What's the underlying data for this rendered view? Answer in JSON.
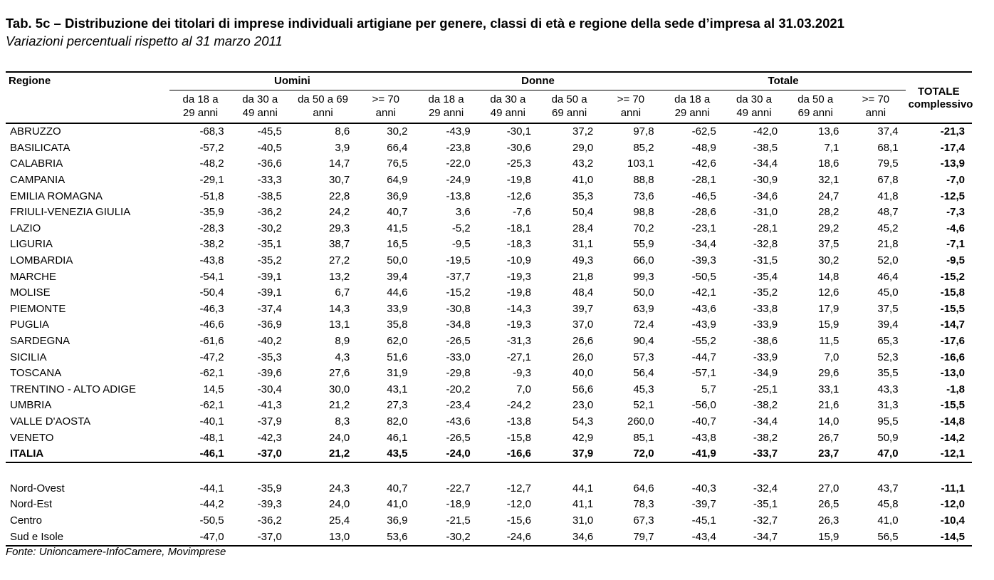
{
  "title": "Tab. 5c – Distribuzione dei titolari di imprese individuali artigiane per genere, classi di età e regione della sede d’impresa al 31.03.2021",
  "subtitle": "Variazioni percentuali rispetto al 31 marzo 2011",
  "source": "Fonte: Unioncamere-InfoCamere, Movimprese",
  "header": {
    "region": "Regione",
    "groups": [
      "Uomini",
      "Donne",
      "Totale"
    ],
    "total_line1": "TOTALE",
    "total_line2": "complessivo",
    "age_classes": [
      {
        "l1": "da 18 a",
        "l2": "29 anni"
      },
      {
        "l1": "da 30 a",
        "l2": "49 anni"
      },
      {
        "l1": "da 50 a 69",
        "l2": "anni"
      },
      {
        "l1": ">= 70",
        "l2": "anni"
      },
      {
        "l1": "da 18 a",
        "l2": "29 anni"
      },
      {
        "l1": "da 30 a",
        "l2": "49 anni"
      },
      {
        "l1": "da 50 a",
        "l2": "69 anni"
      },
      {
        "l1": ">= 70",
        "l2": "anni"
      },
      {
        "l1": "da 18 a",
        "l2": "29 anni"
      },
      {
        "l1": "da 30 a",
        "l2": "49 anni"
      },
      {
        "l1": "da 50 a",
        "l2": "69 anni"
      },
      {
        "l1": ">= 70",
        "l2": "anni"
      }
    ]
  },
  "rows": [
    {
      "region": "ABRUZZO",
      "values": [
        "-68,3",
        "-45,5",
        "8,6",
        "30,2",
        "-43,9",
        "-30,1",
        "37,2",
        "97,8",
        "-62,5",
        "-42,0",
        "13,6",
        "37,4",
        "-21,3"
      ]
    },
    {
      "region": "BASILICATA",
      "values": [
        "-57,2",
        "-40,5",
        "3,9",
        "66,4",
        "-23,8",
        "-30,6",
        "29,0",
        "85,2",
        "-48,9",
        "-38,5",
        "7,1",
        "68,1",
        "-17,4"
      ]
    },
    {
      "region": "CALABRIA",
      "values": [
        "-48,2",
        "-36,6",
        "14,7",
        "76,5",
        "-22,0",
        "-25,3",
        "43,2",
        "103,1",
        "-42,6",
        "-34,4",
        "18,6",
        "79,5",
        "-13,9"
      ]
    },
    {
      "region": "CAMPANIA",
      "values": [
        "-29,1",
        "-33,3",
        "30,7",
        "64,9",
        "-24,9",
        "-19,8",
        "41,0",
        "88,8",
        "-28,1",
        "-30,9",
        "32,1",
        "67,8",
        "-7,0"
      ]
    },
    {
      "region": "EMILIA ROMAGNA",
      "values": [
        "-51,8",
        "-38,5",
        "22,8",
        "36,9",
        "-13,8",
        "-12,6",
        "35,3",
        "73,6",
        "-46,5",
        "-34,6",
        "24,7",
        "41,8",
        "-12,5"
      ]
    },
    {
      "region": "FRIULI-VENEZIA GIULIA",
      "values": [
        "-35,9",
        "-36,2",
        "24,2",
        "40,7",
        "3,6",
        "-7,6",
        "50,4",
        "98,8",
        "-28,6",
        "-31,0",
        "28,2",
        "48,7",
        "-7,3"
      ]
    },
    {
      "region": "LAZIO",
      "values": [
        "-28,3",
        "-30,2",
        "29,3",
        "41,5",
        "-5,2",
        "-18,1",
        "28,4",
        "70,2",
        "-23,1",
        "-28,1",
        "29,2",
        "45,2",
        "-4,6"
      ]
    },
    {
      "region": "LIGURIA",
      "values": [
        "-38,2",
        "-35,1",
        "38,7",
        "16,5",
        "-9,5",
        "-18,3",
        "31,1",
        "55,9",
        "-34,4",
        "-32,8",
        "37,5",
        "21,8",
        "-7,1"
      ]
    },
    {
      "region": "LOMBARDIA",
      "values": [
        "-43,8",
        "-35,2",
        "27,2",
        "50,0",
        "-19,5",
        "-10,9",
        "49,3",
        "66,0",
        "-39,3",
        "-31,5",
        "30,2",
        "52,0",
        "-9,5"
      ]
    },
    {
      "region": "MARCHE",
      "values": [
        "-54,1",
        "-39,1",
        "13,2",
        "39,4",
        "-37,7",
        "-19,3",
        "21,8",
        "99,3",
        "-50,5",
        "-35,4",
        "14,8",
        "46,4",
        "-15,2"
      ]
    },
    {
      "region": "MOLISE",
      "values": [
        "-50,4",
        "-39,1",
        "6,7",
        "44,6",
        "-15,2",
        "-19,8",
        "48,4",
        "50,0",
        "-42,1",
        "-35,2",
        "12,6",
        "45,0",
        "-15,8"
      ]
    },
    {
      "region": "PIEMONTE",
      "values": [
        "-46,3",
        "-37,4",
        "14,3",
        "33,9",
        "-30,8",
        "-14,3",
        "39,7",
        "63,9",
        "-43,6",
        "-33,8",
        "17,9",
        "37,5",
        "-15,5"
      ]
    },
    {
      "region": "PUGLIA",
      "values": [
        "-46,6",
        "-36,9",
        "13,1",
        "35,8",
        "-34,8",
        "-19,3",
        "37,0",
        "72,4",
        "-43,9",
        "-33,9",
        "15,9",
        "39,4",
        "-14,7"
      ]
    },
    {
      "region": "SARDEGNA",
      "values": [
        "-61,6",
        "-40,2",
        "8,9",
        "62,0",
        "-26,5",
        "-31,3",
        "26,6",
        "90,4",
        "-55,2",
        "-38,6",
        "11,5",
        "65,3",
        "-17,6"
      ]
    },
    {
      "region": "SICILIA",
      "values": [
        "-47,2",
        "-35,3",
        "4,3",
        "51,6",
        "-33,0",
        "-27,1",
        "26,0",
        "57,3",
        "-44,7",
        "-33,9",
        "7,0",
        "52,3",
        "-16,6"
      ]
    },
    {
      "region": "TOSCANA",
      "values": [
        "-62,1",
        "-39,6",
        "27,6",
        "31,9",
        "-29,8",
        "-9,3",
        "40,0",
        "56,4",
        "-57,1",
        "-34,9",
        "29,6",
        "35,5",
        "-13,0"
      ]
    },
    {
      "region": "TRENTINO - ALTO ADIGE",
      "values": [
        "14,5",
        "-30,4",
        "30,0",
        "43,1",
        "-20,2",
        "7,0",
        "56,6",
        "45,3",
        "5,7",
        "-25,1",
        "33,1",
        "43,3",
        "-1,8"
      ]
    },
    {
      "region": "UMBRIA",
      "values": [
        "-62,1",
        "-41,3",
        "21,2",
        "27,3",
        "-23,4",
        "-24,2",
        "23,0",
        "52,1",
        "-56,0",
        "-38,2",
        "21,6",
        "31,3",
        "-15,5"
      ]
    },
    {
      "region": "VALLE D'AOSTA",
      "values": [
        "-40,1",
        "-37,9",
        "8,3",
        "82,0",
        "-43,6",
        "-13,8",
        "54,3",
        "260,0",
        "-40,7",
        "-34,4",
        "14,0",
        "95,5",
        "-14,8"
      ]
    },
    {
      "region": "VENETO",
      "values": [
        "-48,1",
        "-42,3",
        "24,0",
        "46,1",
        "-26,5",
        "-15,8",
        "42,9",
        "85,1",
        "-43,8",
        "-38,2",
        "26,7",
        "50,9",
        "-14,2"
      ]
    }
  ],
  "italia": {
    "region": "ITALIA",
    "values": [
      "-46,1",
      "-37,0",
      "21,2",
      "43,5",
      "-24,0",
      "-16,6",
      "37,9",
      "72,0",
      "-41,9",
      "-33,7",
      "23,7",
      "47,0",
      "-12,1"
    ]
  },
  "macro_rows": [
    {
      "region": "Nord-Ovest",
      "values": [
        "-44,1",
        "-35,9",
        "24,3",
        "40,7",
        "-22,7",
        "-12,7",
        "44,1",
        "64,6",
        "-40,3",
        "-32,4",
        "27,0",
        "43,7",
        "-11,1"
      ]
    },
    {
      "region": "Nord-Est",
      "values": [
        "-44,2",
        "-39,3",
        "24,0",
        "41,0",
        "-18,9",
        "-12,0",
        "41,1",
        "78,3",
        "-39,7",
        "-35,1",
        "26,5",
        "45,8",
        "-12,0"
      ]
    },
    {
      "region": "Centro",
      "values": [
        "-50,5",
        "-36,2",
        "25,4",
        "36,9",
        "-21,5",
        "-15,6",
        "31,0",
        "67,3",
        "-45,1",
        "-32,7",
        "26,3",
        "41,0",
        "-10,4"
      ]
    },
    {
      "region": "Sud e Isole",
      "values": [
        "-47,0",
        "-37,0",
        "13,0",
        "53,6",
        "-30,2",
        "-24,6",
        "34,6",
        "79,7",
        "-43,4",
        "-34,7",
        "15,9",
        "56,5",
        "-14,5"
      ]
    }
  ]
}
